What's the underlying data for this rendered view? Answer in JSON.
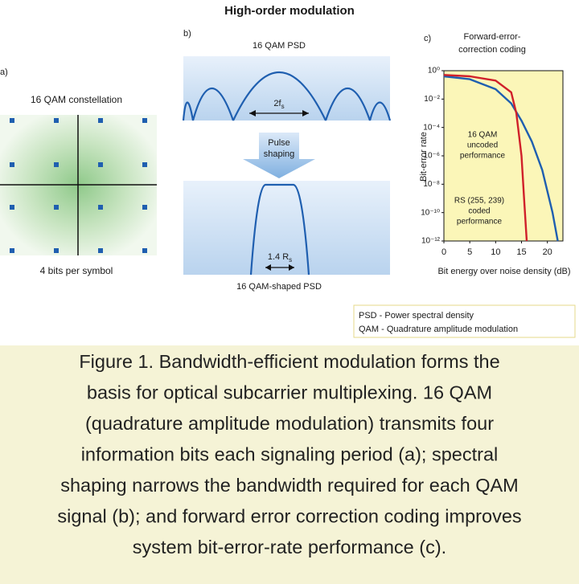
{
  "title": "High-order modulation",
  "panels": {
    "a": {
      "label": "a)",
      "title": "16 QAM constellation",
      "note": "4 bits per symbol"
    },
    "b": {
      "label": "b)",
      "title": "16 QAM PSD",
      "bandwidth": {
        "text": "2f",
        "sub": "s"
      },
      "arrow": [
        "Pulse",
        "shaping"
      ],
      "shaped_bandwidth": {
        "text": "1.4 R",
        "sub": "s"
      },
      "shaped_title": "16 QAM-shaped PSD"
    },
    "c": {
      "label": "c)",
      "title": [
        "Forward-error-",
        "correction coding"
      ],
      "ylabel": "Bit-error rate",
      "xlabel": "Bit energy over noise density (dB)",
      "annotations": [
        [
          "16 QAM",
          "uncoded",
          "performance"
        ],
        [
          "RS (255, 239)",
          "coded",
          "performance"
        ]
      ]
    }
  },
  "chart_data": {
    "type": "line",
    "log_y": true,
    "xlim": [
      0,
      23
    ],
    "xticks": [
      0,
      5,
      10,
      15,
      20
    ],
    "ylim": [
      1e-12,
      1
    ],
    "yticks": [
      {
        "value": 1,
        "label": "10⁰"
      },
      {
        "value": 0.01,
        "label": "10⁻²"
      },
      {
        "value": 0.0001,
        "label": "10⁻⁴"
      },
      {
        "value": 1e-06,
        "label": "10⁻⁶"
      },
      {
        "value": 1e-08,
        "label": "10⁻⁸"
      },
      {
        "value": 1e-10,
        "label": "10⁻¹⁰"
      },
      {
        "value": 1e-12,
        "label": "10⁻¹²"
      }
    ],
    "series": [
      {
        "color": "#1f5fb0",
        "x": [
          0,
          5,
          10,
          13,
          15,
          17,
          19,
          21,
          22
        ],
        "values": [
          0.4,
          0.25,
          0.05,
          0.005,
          0.0003,
          1e-05,
          1e-07,
          1e-10,
          1e-12
        ]
      },
      {
        "color": "#d0202a",
        "x": [
          0,
          5,
          10,
          13,
          14,
          15,
          15.5,
          16
        ],
        "values": [
          0.5,
          0.4,
          0.2,
          0.03,
          0.001,
          1e-06,
          1e-09,
          1e-12
        ]
      }
    ]
  },
  "legend": [
    "PSD - Power spectral density",
    "QAM - Quadrature amplitude modulation"
  ],
  "caption": [
    "Figure 1. Bandwidth-efficient modulation forms the",
    "basis for optical subcarrier multiplexing. 16 QAM",
    "(quadrature amplitude modulation) transmits four",
    "information bits each signaling period (a); spectral",
    "shaping narrows the bandwidth required for each QAM",
    "signal (b); and forward error correction coding improves",
    "system bit-error-rate performance (c)."
  ]
}
